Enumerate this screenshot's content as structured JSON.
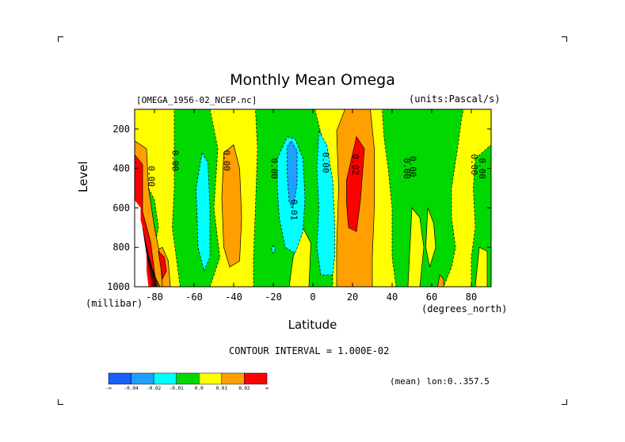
{
  "chart_data": {
    "type": "heatmap",
    "title": "Monthly Mean Omega",
    "file_label": "[OMEGA_1956-02_NCEP.nc]",
    "units_label": "(units:Pascal/s)",
    "xlabel": "Latitude",
    "x_unit_label": "(degrees_north)",
    "ylabel": "Level",
    "y_unit_label": "(millibar)",
    "xlim": [
      -90,
      90
    ],
    "ylim": [
      1000,
      100
    ],
    "x_ticks": [
      -80,
      -60,
      -40,
      -20,
      0,
      20,
      40,
      60,
      80
    ],
    "y_ticks": [
      200,
      400,
      600,
      800,
      1000
    ],
    "x_tick_labels": [
      "-80",
      "-60",
      "-40",
      "-20",
      "0",
      "20",
      "40",
      "60",
      "80"
    ],
    "y_tick_labels": [
      "200",
      "400",
      "600",
      "800",
      "1000"
    ],
    "contour_interval_label": "CONTOUR INTERVAL = 1.000E-02",
    "average_label": "(mean) lon:0..357.5",
    "colorbar": {
      "colors": [
        "#1560ff",
        "#1ea0ff",
        "#00ffff",
        "#00d800",
        "#ffff00",
        "#ffa000",
        "#ff0000"
      ],
      "tick_labels": [
        "-∞",
        "-0.04",
        "-0.02",
        "-0.01",
        "0.0",
        "0.01",
        "0.02",
        "∞"
      ]
    },
    "contour_labels": [
      {
        "text": "0.00",
        "lat": -83,
        "lev": 440
      },
      {
        "text": "0.00",
        "lat": -71,
        "lev": 360
      },
      {
        "text": "0.00",
        "lat": -45,
        "lev": 360
      },
      {
        "text": "0.00",
        "lat": -21,
        "lev": 400
      },
      {
        "text": "0.01",
        "lat": -11,
        "lev": 610
      },
      {
        "text": "0.00",
        "lat": 5,
        "lev": 370
      },
      {
        "text": "0.02",
        "lat": 20,
        "lev": 380
      },
      {
        "text": "0.00",
        "lat": 46,
        "lev": 400
      },
      {
        "text": "0.00",
        "lat": 49,
        "lev": 390
      },
      {
        "text": "0.00",
        "lat": 80,
        "lev": 380
      },
      {
        "text": "0.00",
        "lat": 84,
        "lev": 400
      }
    ],
    "regions": [
      {
        "level_bin": "0.0-0.01",
        "points": [
          [
            -90,
            100
          ],
          [
            90,
            100
          ],
          [
            90,
            1000
          ],
          [
            -90,
            1000
          ]
        ]
      },
      {
        "level_bin": "-0.01-0.0",
        "points": [
          [
            -70,
            100
          ],
          [
            -52,
            100
          ],
          [
            -48,
            300
          ],
          [
            -50,
            600
          ],
          [
            -47,
            850
          ],
          [
            -52,
            1000
          ],
          [
            -67,
            1000
          ],
          [
            -69,
            850
          ],
          [
            -71,
            700
          ],
          [
            -70,
            500
          ]
        ]
      },
      {
        "level_bin": "-0.01-0.0",
        "points": [
          [
            -29,
            100
          ],
          [
            1,
            100
          ],
          [
            3,
            180
          ],
          [
            6,
            300
          ],
          [
            7,
            500
          ],
          [
            9,
            700
          ],
          [
            10,
            850
          ],
          [
            10,
            1000
          ],
          [
            -30,
            1000
          ],
          [
            -30,
            850
          ],
          [
            -29,
            600
          ],
          [
            -28,
            300
          ]
        ]
      },
      {
        "level_bin": "0.0-0.01",
        "points": [
          [
            -5,
            700
          ],
          [
            -1,
            780
          ],
          [
            -2,
            1000
          ],
          [
            -12,
            1000
          ],
          [
            -10,
            850
          ]
        ]
      },
      {
        "level_bin": "-0.01-0.0",
        "points": [
          [
            35,
            100
          ],
          [
            76,
            100
          ],
          [
            75,
            150
          ],
          [
            73,
            300
          ],
          [
            70,
            500
          ],
          [
            70,
            650
          ],
          [
            72,
            800
          ],
          [
            70,
            900
          ],
          [
            66,
            1000
          ],
          [
            42,
            1000
          ],
          [
            40,
            850
          ],
          [
            40,
            600
          ],
          [
            38,
            400
          ],
          [
            36,
            250
          ]
        ]
      },
      {
        "level_bin": "0.0-0.01",
        "points": [
          [
            50,
            600
          ],
          [
            54,
            650
          ],
          [
            56,
            800
          ],
          [
            54,
            1000
          ],
          [
            48,
            1000
          ],
          [
            49,
            800
          ]
        ]
      },
      {
        "level_bin": "0.0-0.01",
        "points": [
          [
            58,
            600
          ],
          [
            61,
            680
          ],
          [
            62,
            800
          ],
          [
            59,
            900
          ],
          [
            57,
            800
          ]
        ]
      },
      {
        "level_bin": "-0.01-0.0",
        "points": [
          [
            82,
            350
          ],
          [
            90,
            280
          ],
          [
            90,
            1000
          ],
          [
            80,
            1000
          ],
          [
            80,
            850
          ],
          [
            82,
            700
          ],
          [
            81,
            500
          ]
        ]
      },
      {
        "level_bin": "0.0-0.01",
        "points": [
          [
            84,
            800
          ],
          [
            88,
            820
          ],
          [
            88,
            1000
          ],
          [
            82,
            1000
          ]
        ]
      },
      {
        "level_bin": "-0.01-0.0",
        "points": [
          [
            -88,
            520
          ],
          [
            -84,
            480
          ],
          [
            -80,
            560
          ],
          [
            -78,
            700
          ],
          [
            -80,
            800
          ],
          [
            -84,
            820
          ],
          [
            -88,
            760
          ]
        ]
      },
      {
        "level_bin": "-0.02--0.01",
        "points": [
          [
            -56,
            320
          ],
          [
            -53,
            370
          ],
          [
            -52,
            600
          ],
          [
            -52,
            850
          ],
          [
            -55,
            920
          ],
          [
            -58,
            800
          ],
          [
            -59,
            500
          ]
        ]
      },
      {
        "level_bin": "-0.02--0.01",
        "points": [
          [
            -18,
            350
          ],
          [
            -13,
            240
          ],
          [
            -9,
            250
          ],
          [
            -5,
            350
          ],
          [
            -4,
            550
          ],
          [
            -5,
            720
          ],
          [
            -9,
            830
          ],
          [
            -14,
            800
          ],
          [
            -17,
            650
          ],
          [
            -18,
            500
          ]
        ]
      },
      {
        "level_bin": "-0.02--0.01",
        "points": [
          [
            3,
            210
          ],
          [
            7,
            280
          ],
          [
            10,
            460
          ],
          [
            11,
            680
          ],
          [
            11,
            850
          ],
          [
            10,
            940
          ],
          [
            4,
            940
          ],
          [
            2,
            800
          ],
          [
            3,
            600
          ],
          [
            2,
            400
          ]
        ]
      },
      {
        "level_bin": "-0.02--0.01",
        "points": [
          [
            -20,
            790
          ],
          [
            -19,
            810
          ],
          [
            -20,
            830
          ],
          [
            -21,
            810
          ]
        ]
      },
      {
        "level_bin": "-0.04--0.02",
        "points": [
          [
            -13,
            290
          ],
          [
            -11,
            260
          ],
          [
            -8,
            310
          ],
          [
            -8,
            480
          ],
          [
            -10,
            600
          ],
          [
            -12,
            570
          ],
          [
            -13,
            430
          ]
        ]
      },
      {
        "level_bin": "0.01-0.02",
        "points": [
          [
            -45,
            320
          ],
          [
            -40,
            280
          ],
          [
            -37,
            400
          ],
          [
            -36,
            650
          ],
          [
            -37,
            870
          ],
          [
            -42,
            900
          ],
          [
            -45,
            800
          ],
          [
            -46,
            550
          ]
        ]
      },
      {
        "level_bin": "0.01-0.02",
        "points": [
          [
            12,
            210
          ],
          [
            17,
            80
          ],
          [
            29,
            100
          ],
          [
            31,
            300
          ],
          [
            31,
            600
          ],
          [
            30,
            850
          ],
          [
            30,
            1000
          ],
          [
            12,
            1000
          ],
          [
            12,
            800
          ],
          [
            13,
            500
          ]
        ]
      },
      {
        "level_bin": "0.01-0.02",
        "points": [
          [
            -80,
            820
          ],
          [
            -76,
            800
          ],
          [
            -73,
            870
          ],
          [
            -72,
            1000
          ],
          [
            -78,
            1000
          ]
        ]
      },
      {
        "level_bin": "0.01-0.02",
        "points": [
          [
            64,
            940
          ],
          [
            66,
            960
          ],
          [
            66,
            1000
          ],
          [
            63,
            1000
          ]
        ]
      },
      {
        "level_bin": "0.02-inf",
        "points": [
          [
            17,
            460
          ],
          [
            22,
            240
          ],
          [
            26,
            300
          ],
          [
            24,
            560
          ],
          [
            22,
            720
          ],
          [
            18,
            700
          ],
          [
            17,
            580
          ]
        ]
      },
      {
        "level_bin": "0.01-0.02",
        "points": [
          [
            -90,
            260
          ],
          [
            -84,
            300
          ],
          [
            -83,
            500
          ],
          [
            -80,
            700
          ],
          [
            -77,
            850
          ],
          [
            -76,
            1000
          ],
          [
            -90,
            1000
          ]
        ]
      },
      {
        "level_bin": "0.02-inf",
        "points": [
          [
            -90,
            330
          ],
          [
            -86,
            380
          ],
          [
            -86,
            620
          ],
          [
            -82,
            770
          ],
          [
            -79,
            1000
          ],
          [
            -90,
            1000
          ]
        ]
      },
      {
        "level_bin": "0.02-inf",
        "points": [
          [
            -78,
            820
          ],
          [
            -75,
            850
          ],
          [
            -74,
            920
          ],
          [
            -76,
            960
          ]
        ]
      },
      {
        "level_bin": "missing",
        "points": [
          [
            -90,
            560
          ],
          [
            -87,
            600
          ],
          [
            -87,
            660
          ],
          [
            -86,
            700
          ],
          [
            -85,
            770
          ],
          [
            -84,
            840
          ],
          [
            -84,
            920
          ],
          [
            -83,
            1000
          ],
          [
            -90,
            1000
          ]
        ]
      }
    ]
  }
}
